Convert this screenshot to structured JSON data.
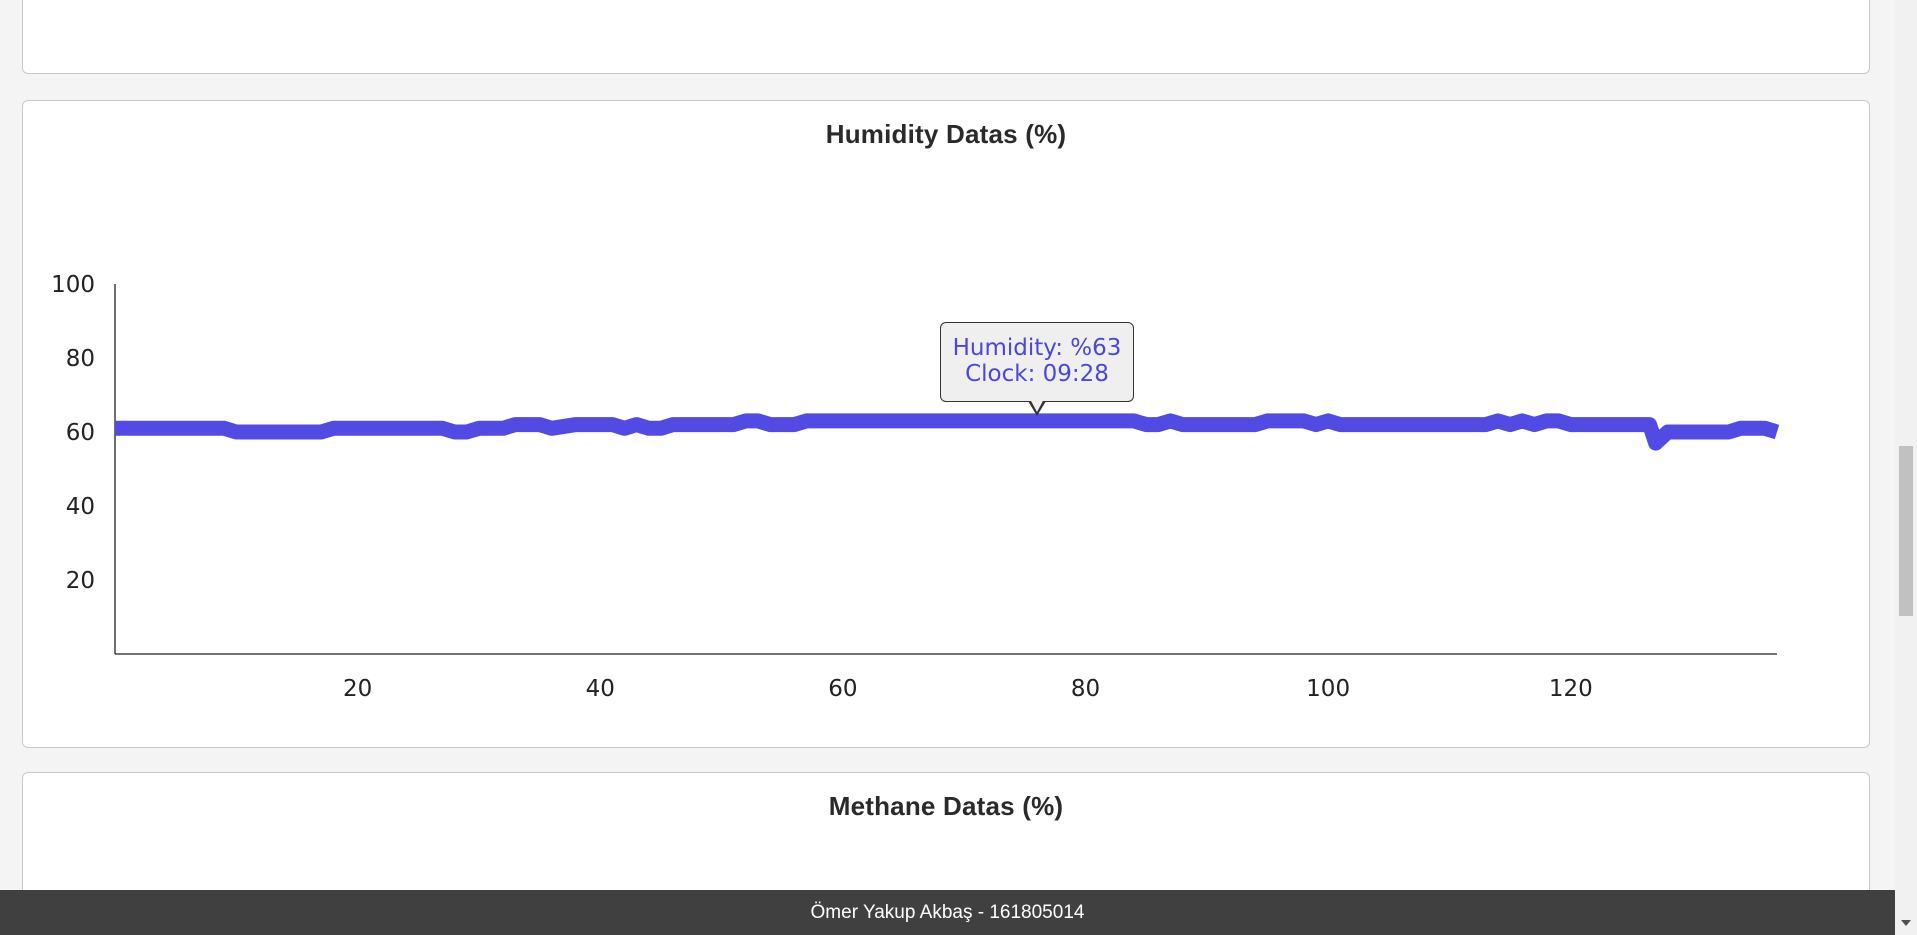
{
  "cards": {
    "humidity_title": "Humidity Datas (%)",
    "methane_title": "Methane Datas (%)"
  },
  "tooltip": {
    "line1": "Humidity: %63",
    "line2": "Clock: 09:28",
    "index": 76
  },
  "footer": {
    "text": "Ömer Yakup Akbaş - 161805014"
  },
  "colors": {
    "series": "#524be3",
    "tooltip_text": "#4b46dd"
  },
  "icons": {
    "scroll_down": "chevron-down-icon"
  },
  "chart_data": {
    "type": "line",
    "title": "Humidity Datas (%)",
    "xlabel": "",
    "ylabel": "",
    "xlim": [
      0,
      137
    ],
    "ylim": [
      0,
      100
    ],
    "y_ticks": [
      20,
      40,
      60,
      80,
      100
    ],
    "x_ticks": [
      20,
      40,
      60,
      80,
      100,
      120
    ],
    "grid": false,
    "legend": "none",
    "series": [
      {
        "color": "#524be3",
        "x": [
          0,
          2,
          4,
          6,
          8,
          9,
          10,
          12,
          14,
          16,
          17,
          18,
          20,
          22,
          24,
          26,
          27,
          28,
          29,
          30,
          32,
          33,
          34,
          35,
          36,
          38,
          40,
          41,
          42,
          43,
          44,
          45,
          46,
          48,
          50,
          51,
          52,
          53,
          54,
          55,
          56,
          57,
          58,
          60,
          62,
          64,
          66,
          68,
          70,
          72,
          74,
          76,
          78,
          80,
          82,
          84,
          85,
          86,
          87,
          88,
          90,
          92,
          94,
          95,
          96,
          97,
          98,
          99,
          100,
          101,
          102,
          104,
          106,
          108,
          110,
          112,
          113,
          114,
          115,
          116,
          117,
          118,
          119,
          120,
          121,
          122,
          124,
          126,
          126.5,
          127,
          128,
          130,
          132,
          133,
          134,
          136,
          137
        ],
        "y": [
          61,
          61,
          61,
          61,
          61,
          61,
          60,
          60,
          60,
          60,
          60,
          61,
          61,
          61,
          61,
          61,
          61,
          60,
          60,
          61,
          61,
          62,
          62,
          62,
          61,
          62,
          62,
          62,
          61,
          62,
          61,
          61,
          62,
          62,
          62,
          62,
          63,
          63,
          62,
          62,
          62,
          63,
          63,
          63,
          63,
          63,
          63,
          63,
          63,
          63,
          63,
          63,
          63,
          63,
          63,
          63,
          62,
          62,
          63,
          62,
          62,
          62,
          62,
          63,
          63,
          63,
          63,
          62,
          63,
          62,
          62,
          62,
          62,
          62,
          62,
          62,
          62,
          63,
          62,
          63,
          62,
          63,
          63,
          62,
          62,
          62,
          62,
          62,
          62,
          57,
          60,
          60,
          60,
          60,
          61,
          61,
          60
        ]
      }
    ]
  }
}
